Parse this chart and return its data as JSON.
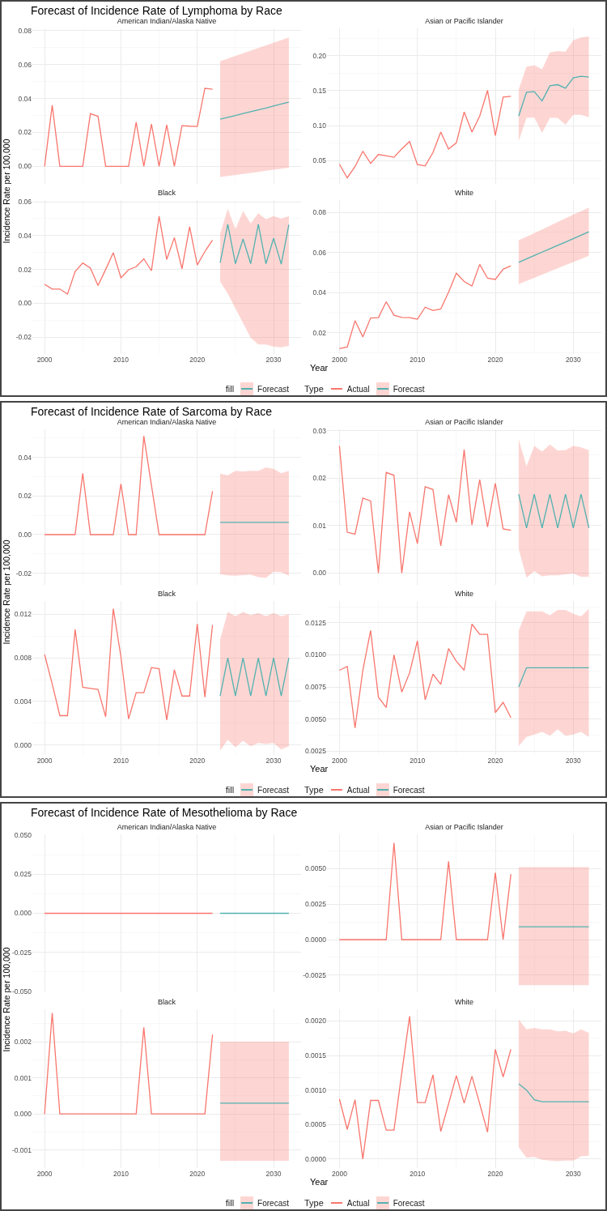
{
  "chart_data": [
    {
      "type": "line",
      "title": "Forecast of Incidence Rate of Lymphoma by Race",
      "subtitle": "American Indian/Alaska Native",
      "ylabel": "Incidence Rate per 100,000",
      "xlim": [
        1998.4,
        2033.6
      ],
      "xticks": [
        2000,
        2010,
        2020,
        2030
      ],
      "ylim": [
        -0.0103,
        0.0813
      ],
      "yticks": [
        {
          "value": 0,
          "label": "0.00"
        },
        0.02,
        0.04,
        0.06,
        0.08
      ],
      "grid": true,
      "tick_labels": "y",
      "series": [
        {
          "color": "#f8766d",
          "x": [
            2000,
            2001,
            2002,
            2003,
            2004,
            2005,
            2006,
            2007,
            2008,
            2009,
            2010,
            2011,
            2012,
            2013,
            2014,
            2015,
            2016,
            2017,
            2018,
            2019,
            2020,
            2021,
            2022
          ],
          "values": [
            0,
            0.036,
            0,
            0,
            0,
            0,
            0.031,
            0.0295,
            0,
            0,
            0,
            0,
            0.026,
            0,
            0.025,
            0,
            0.0245,
            0,
            0.024,
            0.0237,
            0.0235,
            0.046,
            0.0455
          ]
        },
        {
          "color": "#52b2b0",
          "x": [
            2023,
            2024,
            2025,
            2026,
            2027,
            2028,
            2029,
            2030,
            2031,
            2032
          ],
          "values": [
            0.0278,
            0.0289,
            0.03,
            0.0311,
            0.0322,
            0.0333,
            0.0344,
            0.0356,
            0.0367,
            0.0378
          ],
          "lower": [
            -0.0063,
            -0.0057,
            -0.0051,
            -0.0045,
            -0.0039,
            -0.0033,
            -0.0026,
            -0.002,
            -0.0014,
            -0.0008
          ],
          "upper": [
            0.062,
            0.0635,
            0.0651,
            0.0666,
            0.0682,
            0.0697,
            0.0713,
            0.0728,
            0.0744,
            0.0759
          ]
        }
      ]
    },
    {
      "type": "line",
      "subtitle": "Asian or Pacific Islander",
      "xlim": [
        1998.4,
        2033.6
      ],
      "xticks": [
        2000,
        2010,
        2020,
        2030
      ],
      "ylim": [
        0.017,
        0.239
      ],
      "yticks": [
        0.05,
        {
          "value": 0.1,
          "label": "0.10"
        },
        0.15,
        {
          "value": 0.2,
          "label": "0.20"
        }
      ],
      "grid": true,
      "tick_labels": "y",
      "series": [
        {
          "color": "#f8766d",
          "x": [
            2000,
            2001,
            2002,
            2003,
            2004,
            2005,
            2006,
            2007,
            2008,
            2009,
            2010,
            2011,
            2012,
            2013,
            2014,
            2015,
            2016,
            2017,
            2018,
            2019,
            2020,
            2021,
            2022
          ],
          "values": [
            0.045,
            0.0257,
            0.0416,
            0.0636,
            0.0462,
            0.0589,
            0.057,
            0.055,
            0.067,
            0.0775,
            0.0446,
            0.0427,
            0.0617,
            0.091,
            0.0667,
            0.0756,
            0.1196,
            0.091,
            0.1138,
            0.1505,
            0.086,
            0.1409,
            0.142
          ]
        },
        {
          "color": "#52b2b0",
          "x": [
            2023,
            2024,
            2025,
            2026,
            2027,
            2028,
            2029,
            2030,
            2031,
            2032
          ],
          "values": [
            0.1138,
            0.1478,
            0.1486,
            0.1354,
            0.157,
            0.1586,
            0.1536,
            0.1683,
            0.1706,
            0.1694
          ],
          "lower": [
            0.0782,
            0.1111,
            0.1119,
            0.0898,
            0.1111,
            0.1111,
            0.1014,
            0.1157,
            0.1157,
            0.1122
          ],
          "upper": [
            0.1517,
            0.1845,
            0.1865,
            0.1807,
            0.2046,
            0.2066,
            0.2058,
            0.222,
            0.2259,
            0.2275
          ]
        }
      ]
    },
    {
      "type": "line",
      "subtitle": "Black",
      "xlim": [
        1998.4,
        2033.6
      ],
      "xticks": [
        2000,
        2010,
        2020,
        2030
      ],
      "ylim": [
        -0.03,
        0.061
      ],
      "yticks": [
        -0.02,
        {
          "value": 0,
          "label": "0.00"
        },
        0.02,
        0.04,
        0.06
      ],
      "grid": true,
      "legend": "bottom",
      "legend_title": "fill",
      "series": [
        {
          "color": "#f8766d",
          "x": [
            2000,
            2001,
            2002,
            2003,
            2004,
            2005,
            2006,
            2007,
            2008,
            2009,
            2010,
            2011,
            2012,
            2013,
            2014,
            2015,
            2016,
            2017,
            2018,
            2019,
            2020,
            2021,
            2022
          ],
          "values": [
            0.0112,
            0.0084,
            0.0084,
            0.0054,
            0.0187,
            0.0238,
            0.0208,
            0.0105,
            0.02,
            0.0299,
            0.015,
            0.0198,
            0.0216,
            0.0263,
            0.0192,
            0.0515,
            0.0259,
            0.0388,
            0.0204,
            0.0453,
            0.0226,
            0.0306,
            0.0374
          ]
        },
        {
          "name": "Forecast",
          "color": "#52b2b0",
          "x": [
            2023,
            2024,
            2025,
            2026,
            2027,
            2028,
            2029,
            2030,
            2031,
            2032
          ],
          "values": [
            0.0239,
            0.0467,
            0.0234,
            0.038,
            0.0234,
            0.0467,
            0.0234,
            0.0384,
            0.0231,
            0.0464
          ],
          "lower": [
            0.0128,
            0.0057,
            -0.003,
            -0.0117,
            -0.0204,
            -0.0244,
            -0.0244,
            -0.0257,
            -0.026,
            -0.0252
          ],
          "upper": [
            0.0413,
            0.0559,
            0.0437,
            0.0545,
            0.0472,
            0.0532,
            0.0496,
            0.0516,
            0.05,
            0.0515
          ]
        }
      ]
    },
    {
      "type": "line",
      "subtitle": "White",
      "xlabel": "Year",
      "xlim": [
        1998.4,
        2033.6
      ],
      "xticks": [
        2000,
        2010,
        2020,
        2030
      ],
      "ylim": [
        0.0095,
        0.0861
      ],
      "yticks": [
        0.02,
        0.04,
        0.06,
        0.08
      ],
      "grid": true,
      "legend": "bottom",
      "legend_title": "Type",
      "series": [
        {
          "name": "Actual",
          "color": "#f8766d",
          "x": [
            2000,
            2001,
            2002,
            2003,
            2004,
            2005,
            2006,
            2007,
            2008,
            2009,
            2010,
            2011,
            2012,
            2013,
            2014,
            2015,
            2016,
            2017,
            2018,
            2019,
            2020,
            2021,
            2022
          ],
          "values": [
            0.0122,
            0.013,
            0.0261,
            0.018,
            0.0274,
            0.0276,
            0.0355,
            0.0288,
            0.0277,
            0.0276,
            0.0268,
            0.0328,
            0.0311,
            0.0319,
            0.0402,
            0.0497,
            0.0456,
            0.0433,
            0.0541,
            0.0472,
            0.0466,
            0.0517,
            0.0534
          ]
        },
        {
          "name": "Forecast",
          "color": "#52b2b0",
          "x": [
            2023,
            2024,
            2025,
            2026,
            2027,
            2028,
            2029,
            2030,
            2031,
            2032
          ],
          "values": [
            0.0551,
            0.0568,
            0.0585,
            0.0602,
            0.0619,
            0.0636,
            0.0652,
            0.0669,
            0.0686,
            0.0703
          ],
          "lower": [
            0.0443,
            0.0459,
            0.0474,
            0.049,
            0.0506,
            0.0521,
            0.0537,
            0.0553,
            0.0568,
            0.0584
          ],
          "upper": [
            0.0661,
            0.0679,
            0.0697,
            0.0715,
            0.0733,
            0.0752,
            0.077,
            0.0788,
            0.0806,
            0.0824
          ]
        }
      ]
    },
    {
      "type": "line",
      "title": "Forecast of Incidence Rate of Sarcoma by Race",
      "subtitle": "American Indian/Alaska Native",
      "ylabel": "Incidence Rate per 100,000",
      "xlim": [
        1998.4,
        2033.6
      ],
      "xticks": [
        2000,
        2010,
        2020,
        2030
      ],
      "ylim": [
        -0.026,
        0.0545
      ],
      "yticks": [
        -0.02,
        {
          "value": 0,
          "label": "0.00"
        },
        0.02,
        0.04
      ],
      "grid": true,
      "tick_labels": "y",
      "series": [
        {
          "color": "#f8766d",
          "x": [
            2000,
            2001,
            2002,
            2003,
            2004,
            2005,
            2006,
            2007,
            2008,
            2009,
            2010,
            2011,
            2012,
            2013,
            2014,
            2015,
            2016,
            2017,
            2018,
            2019,
            2020,
            2021,
            2022
          ],
          "values": [
            0,
            0,
            0,
            0,
            0,
            0.0317,
            0,
            0,
            0,
            0,
            0.0263,
            0,
            0,
            0.051,
            0.0255,
            0,
            0,
            0,
            0,
            0,
            0,
            0,
            0.0225
          ]
        },
        {
          "color": "#52b2b0",
          "x": [
            2023,
            2024,
            2025,
            2026,
            2027,
            2028,
            2029,
            2030,
            2031,
            2032
          ],
          "values": [
            0.0063,
            0.0063,
            0.0063,
            0.0063,
            0.0063,
            0.0063,
            0.0063,
            0.0063,
            0.0063,
            0.0063
          ],
          "lower": [
            -0.0206,
            -0.0211,
            -0.0213,
            -0.021,
            -0.0208,
            -0.022,
            -0.0224,
            -0.0192,
            -0.0194,
            -0.0213
          ],
          "upper": [
            0.0315,
            0.0307,
            0.033,
            0.0327,
            0.033,
            0.033,
            0.0348,
            0.0341,
            0.0318,
            0.033
          ]
        }
      ]
    },
    {
      "type": "line",
      "subtitle": "Asian or Pacific Islander",
      "xlim": [
        1998.4,
        2033.6
      ],
      "xticks": [
        2000,
        2010,
        2020,
        2030
      ],
      "ylim": [
        -0.0025,
        0.0303
      ],
      "yticks": [
        {
          "value": 0,
          "label": "0.00"
        },
        0.01,
        0.02,
        0.03
      ],
      "grid": true,
      "tick_labels": "y",
      "series": [
        {
          "color": "#f8766d",
          "x": [
            2000,
            2001,
            2002,
            2003,
            2004,
            2005,
            2006,
            2007,
            2008,
            2009,
            2010,
            2011,
            2012,
            2013,
            2014,
            2015,
            2016,
            2017,
            2018,
            2019,
            2020,
            2021,
            2022
          ],
          "values": [
            0.0268,
            0.0086,
            0.0082,
            0.0158,
            0.0152,
            0,
            0.0212,
            0.0206,
            0,
            0.0129,
            0.0062,
            0.0182,
            0.0176,
            0.0057,
            0.0165,
            0.0107,
            0.026,
            0.0101,
            0.0197,
            0.0097,
            0.0189,
            0.0093,
            0.009
          ]
        },
        {
          "color": "#52b2b0",
          "x": [
            2023,
            2024,
            2025,
            2026,
            2027,
            2028,
            2029,
            2030,
            2031,
            2032
          ],
          "values": [
            0.0166,
            0.0095,
            0.0166,
            0.0095,
            0.0166,
            0.0095,
            0.0166,
            0.0095,
            0.0166,
            0.0095
          ],
          "lower": [
            0.005,
            -0.001,
            0.0004,
            -0.0007,
            -0.0005,
            -0.0005,
            -0.0003,
            -0.0001,
            -0.0008,
            -0.0008
          ],
          "upper": [
            0.0282,
            0.0225,
            0.0268,
            0.0256,
            0.0271,
            0.0258,
            0.0259,
            0.0268,
            0.0265,
            0.0259
          ]
        }
      ]
    },
    {
      "type": "line",
      "subtitle": "Black",
      "xlim": [
        1998.4,
        2033.6
      ],
      "xticks": [
        2000,
        2010,
        2020,
        2030
      ],
      "ylim": [
        -0.0009,
        0.0132
      ],
      "yticks": [
        {
          "value": 0,
          "label": "0.000"
        },
        0.004,
        0.008,
        0.012
      ],
      "grid": true,
      "legend": "bottom",
      "legend_title": "fill",
      "series": [
        {
          "color": "#f8766d",
          "x": [
            2000,
            2001,
            2002,
            2003,
            2004,
            2005,
            2006,
            2007,
            2008,
            2009,
            2010,
            2011,
            2012,
            2013,
            2014,
            2015,
            2016,
            2017,
            2018,
            2019,
            2020,
            2021,
            2022
          ],
          "values": [
            0.0083,
            0.0056,
            0.0027,
            0.0027,
            0.0106,
            0.0053,
            0.0052,
            0.0051,
            0.0026,
            0.0125,
            0.0081,
            0.0024,
            0.0048,
            0.0048,
            0.0071,
            0.007,
            0.0023,
            0.0069,
            0.0045,
            0.0045,
            0.0111,
            0.0044,
            0.011
          ]
        },
        {
          "name": "Forecast",
          "color": "#52b2b0",
          "x": [
            2023,
            2024,
            2025,
            2026,
            2027,
            2028,
            2029,
            2030,
            2031,
            2032
          ],
          "values": [
            0.0045,
            0.008,
            0.0045,
            0.008,
            0.0045,
            0.008,
            0.0045,
            0.008,
            0.0045,
            0.008
          ],
          "lower": [
            -0.0005,
            0.0005,
            -0.0002,
            0.0004,
            -0.0001,
            0.0002,
            0.0001,
            0.0002,
            -0.0004,
            -0.0001
          ],
          "upper": [
            0.0097,
            0.0122,
            0.0118,
            0.0122,
            0.0119,
            0.0121,
            0.0118,
            0.0121,
            0.0118,
            0.012
          ]
        }
      ]
    },
    {
      "type": "line",
      "subtitle": "White",
      "xlabel": "Year",
      "xlim": [
        1998.4,
        2033.6
      ],
      "xticks": [
        2000,
        2010,
        2020,
        2030
      ],
      "ylim": [
        0.0022,
        0.0142
      ],
      "yticks": [
        0.0025,
        {
          "value": 0.005,
          "label": "0.0050"
        },
        0.0075,
        {
          "value": 0.01,
          "label": "0.0100"
        },
        0.0125
      ],
      "grid": true,
      "legend": "bottom",
      "legend_title": "Type",
      "series": [
        {
          "name": "Actual",
          "color": "#f8766d",
          "x": [
            2000,
            2001,
            2002,
            2003,
            2004,
            2005,
            2006,
            2007,
            2008,
            2009,
            2010,
            2011,
            2012,
            2013,
            2014,
            2015,
            2016,
            2017,
            2018,
            2019,
            2020,
            2021,
            2022
          ],
          "values": [
            0.0088,
            0.0091,
            0.0043,
            0.0088,
            0.0119,
            0.0067,
            0.0059,
            0.01,
            0.0071,
            0.0086,
            0.0111,
            0.0065,
            0.0085,
            0.0077,
            0.0105,
            0.0095,
            0.0088,
            0.0124,
            0.0116,
            0.0116,
            0.0055,
            0.0063,
            0.0051
          ]
        },
        {
          "name": "Forecast",
          "color": "#52b2b0",
          "x": [
            2023,
            2024,
            2025,
            2026,
            2027,
            2028,
            2029,
            2030,
            2031,
            2032
          ],
          "values": [
            0.0075,
            0.009,
            0.009,
            0.009,
            0.009,
            0.009,
            0.009,
            0.009,
            0.009,
            0.009
          ],
          "lower": [
            0.0029,
            0.0036,
            0.0038,
            0.004,
            0.0037,
            0.0042,
            0.0037,
            0.0038,
            0.004,
            0.0036
          ],
          "upper": [
            0.0119,
            0.0134,
            0.0134,
            0.0134,
            0.0131,
            0.0135,
            0.0135,
            0.0132,
            0.013,
            0.0136
          ]
        }
      ]
    },
    {
      "type": "line",
      "title": "Forecast of Incidence Rate of Mesothelioma by Race",
      "subtitle": "American Indian/Alaska Native",
      "ylabel": "Incidence Rate per 100,000",
      "xlim": [
        1998.4,
        2033.6
      ],
      "xticks": [
        2000,
        2010,
        2020,
        2030
      ],
      "ylim": [
        -0.0505,
        0.0505
      ],
      "yticks": [
        {
          "value": -0.05,
          "label": "-0.050"
        },
        -0.025,
        {
          "value": 0,
          "label": "0.000"
        },
        0.025,
        {
          "value": 0.05,
          "label": "0.050"
        }
      ],
      "grid": true,
      "tick_labels": "y",
      "series": [
        {
          "color": "#f8766d",
          "x": [
            2000,
            2001,
            2002,
            2003,
            2004,
            2005,
            2006,
            2007,
            2008,
            2009,
            2010,
            2011,
            2012,
            2013,
            2014,
            2015,
            2016,
            2017,
            2018,
            2019,
            2020,
            2021,
            2022
          ],
          "values": [
            0,
            0,
            0,
            0,
            0,
            0,
            0,
            0,
            0,
            0,
            0,
            0,
            0,
            0,
            0,
            0,
            0,
            0,
            0,
            0,
            0,
            0,
            0
          ]
        },
        {
          "color": "#52b2b0",
          "x": [
            2023,
            2024,
            2025,
            2026,
            2027,
            2028,
            2029,
            2030,
            2031,
            2032
          ],
          "values": [
            0,
            0,
            0,
            0,
            0,
            0,
            0,
            0,
            0,
            0
          ]
        }
      ]
    },
    {
      "type": "line",
      "subtitle": "Asian or Pacific Islander",
      "xlim": [
        1998.4,
        2033.6
      ],
      "xticks": [
        2000,
        2010,
        2020,
        2030
      ],
      "ylim": [
        -0.0037,
        0.0074
      ],
      "yticks": [
        -0.0025,
        {
          "value": 0,
          "label": "0.0000"
        },
        0.0025,
        {
          "value": 0.005,
          "label": "0.0050"
        }
      ],
      "grid": true,
      "tick_labels": "y",
      "series": [
        {
          "color": "#f8766d",
          "x": [
            2000,
            2001,
            2002,
            2003,
            2004,
            2005,
            2006,
            2007,
            2008,
            2009,
            2010,
            2011,
            2012,
            2013,
            2014,
            2015,
            2016,
            2017,
            2018,
            2019,
            2020,
            2021,
            2022
          ],
          "values": [
            0,
            0,
            0,
            0,
            0,
            0,
            0,
            0.0068,
            0,
            0,
            0,
            0,
            0,
            0,
            0.0055,
            0,
            0,
            0,
            0,
            0,
            0.0047,
            0,
            0.0046
          ]
        },
        {
          "color": "#52b2b0",
          "x": [
            2023,
            2024,
            2025,
            2026,
            2027,
            2028,
            2029,
            2030,
            2031,
            2032
          ],
          "values": [
            0.0009,
            0.0009,
            0.0009,
            0.0009,
            0.0009,
            0.0009,
            0.0009,
            0.0009,
            0.0009,
            0.0009
          ],
          "lower": [
            -0.0032,
            -0.0032,
            -0.0032,
            -0.0032,
            -0.0032,
            -0.0032,
            -0.0032,
            -0.0032,
            -0.0032,
            -0.0032
          ],
          "upper": [
            0.0051,
            0.0051,
            0.0051,
            0.0051,
            0.0051,
            0.0051,
            0.0051,
            0.0051,
            0.0051,
            0.0051
          ]
        }
      ]
    },
    {
      "type": "line",
      "subtitle": "Black",
      "xlim": [
        1998.4,
        2033.6
      ],
      "xticks": [
        2000,
        2010,
        2020,
        2030
      ],
      "ylim": [
        -0.0015,
        0.0029
      ],
      "yticks": [
        -0.001,
        {
          "value": 0,
          "label": "0.000"
        },
        0.001,
        0.002
      ],
      "grid": true,
      "legend": "bottom",
      "legend_title": "fill",
      "series": [
        {
          "color": "#f8766d",
          "x": [
            2000,
            2001,
            2002,
            2003,
            2004,
            2005,
            2006,
            2007,
            2008,
            2009,
            2010,
            2011,
            2012,
            2013,
            2014,
            2015,
            2016,
            2017,
            2018,
            2019,
            2020,
            2021,
            2022
          ],
          "values": [
            0,
            0.0028,
            0,
            0,
            0,
            0,
            0,
            0,
            0,
            0,
            0,
            0,
            0,
            0.0024,
            0,
            0,
            0,
            0,
            0,
            0,
            0,
            0,
            0.0022
          ]
        },
        {
          "name": "Forecast",
          "color": "#52b2b0",
          "x": [
            2023,
            2024,
            2025,
            2026,
            2027,
            2028,
            2029,
            2030,
            2031,
            2032
          ],
          "values": [
            0.0003,
            0.0003,
            0.0003,
            0.0003,
            0.0003,
            0.0003,
            0.0003,
            0.0003,
            0.0003,
            0.0003
          ],
          "lower": [
            -0.0013,
            -0.0013,
            -0.0013,
            -0.0013,
            -0.0013,
            -0.0013,
            -0.0013,
            -0.0013,
            -0.0013,
            -0.0013
          ],
          "upper": [
            0.002,
            0.002,
            0.002,
            0.002,
            0.002,
            0.002,
            0.002,
            0.002,
            0.002,
            0.002
          ]
        }
      ]
    },
    {
      "type": "line",
      "subtitle": "White",
      "xlabel": "Year",
      "xlim": [
        1998.4,
        2033.6
      ],
      "xticks": [
        2000,
        2010,
        2020,
        2030
      ],
      "ylim": [
        -0.00013,
        0.00217
      ],
      "yticks": [
        {
          "value": 0,
          "label": "0.0000"
        },
        0.0005,
        {
          "value": 0.001,
          "label": "0.0010"
        },
        0.0015,
        {
          "value": 0.002,
          "label": "0.0020"
        }
      ],
      "grid": true,
      "legend": "bottom",
      "legend_title": "Type",
      "series": [
        {
          "name": "Actual",
          "color": "#f8766d",
          "x": [
            2000,
            2001,
            2002,
            2003,
            2004,
            2005,
            2006,
            2007,
            2008,
            2009,
            2010,
            2011,
            2012,
            2013,
            2014,
            2015,
            2016,
            2017,
            2018,
            2019,
            2020,
            2021,
            2022
          ],
          "values": [
            0.00087,
            0.00043,
            0.00086,
            0,
            0.00085,
            0.00085,
            0.00042,
            0.00042,
            0.00125,
            0.00207,
            0.00082,
            0.00082,
            0.00122,
            0.0004,
            0.0008,
            0.00121,
            0.00081,
            0.0012,
            0.0008,
            0.00039,
            0.00159,
            0.00119,
            0.00159
          ]
        },
        {
          "name": "Forecast",
          "color": "#52b2b0",
          "x": [
            2023,
            2024,
            2025,
            2026,
            2027,
            2028,
            2029,
            2030,
            2031,
            2032
          ],
          "values": [
            0.00109,
            0.001,
            0.00086,
            0.00083,
            0.00083,
            0.00083,
            0.00083,
            0.00083,
            0.00083,
            0.00083
          ],
          "lower": [
            0.00017,
            2e-05,
            3e-05,
            -1e-05,
            -2e-05,
            -3e-05,
            -2e-05,
            -2e-05,
            4e-05,
            5e-05
          ],
          "upper": [
            0.00202,
            0.00188,
            0.0019,
            0.00188,
            0.00188,
            0.00185,
            0.00186,
            0.00182,
            0.00188,
            0.00183
          ]
        }
      ]
    }
  ]
}
